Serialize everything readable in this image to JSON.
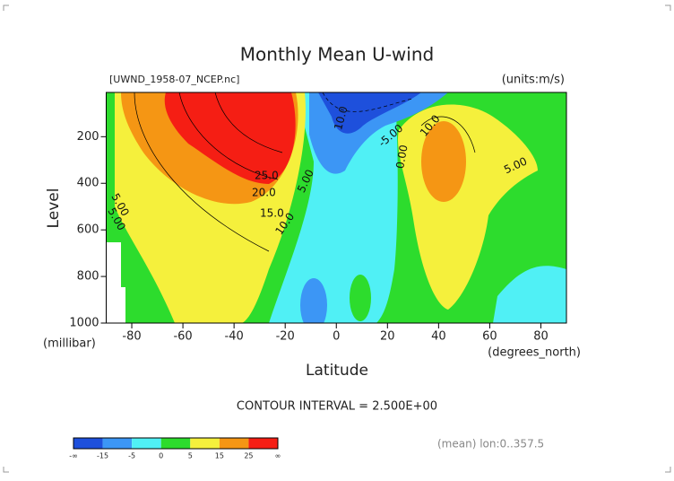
{
  "chart_data": {
    "type": "contour",
    "title": "Monthly Mean U-wind",
    "subtitle": "[UWND_1958-07_NCEP.nc]",
    "units": "(units:m/s)",
    "ylabel": "Level",
    "yunits": "(millibar)",
    "xlabel": "Latitude",
    "xunits": "(degrees_north)",
    "contour_note": "CONTOUR INTERVAL = 2.500E+00",
    "footnote": "(mean) lon:0..357.5",
    "xlim": [
      -90,
      90
    ],
    "xticks": [
      -80,
      -60,
      -40,
      -20,
      0,
      20,
      40,
      60,
      80
    ],
    "ylim": [
      1000,
      10
    ],
    "yticks": [
      200,
      400,
      600,
      800,
      1000
    ],
    "contour_labels": [
      "25.0",
      "20.0",
      "15.0",
      "10.0",
      "5.00",
      "5.00",
      "10.0",
      "10.0",
      "5.00",
      "0.00",
      "-5.00",
      "5.00"
    ],
    "colorbar": {
      "labels": [
        "-∞",
        "-15",
        "-5",
        "0",
        "5",
        "15",
        "25",
        "∞"
      ],
      "colors": [
        "#1e50dc",
        "#3c96f5",
        "#50f0f5",
        "#2ddc2d",
        "#f5f03c",
        "#f59614",
        "#f51e14"
      ]
    }
  }
}
